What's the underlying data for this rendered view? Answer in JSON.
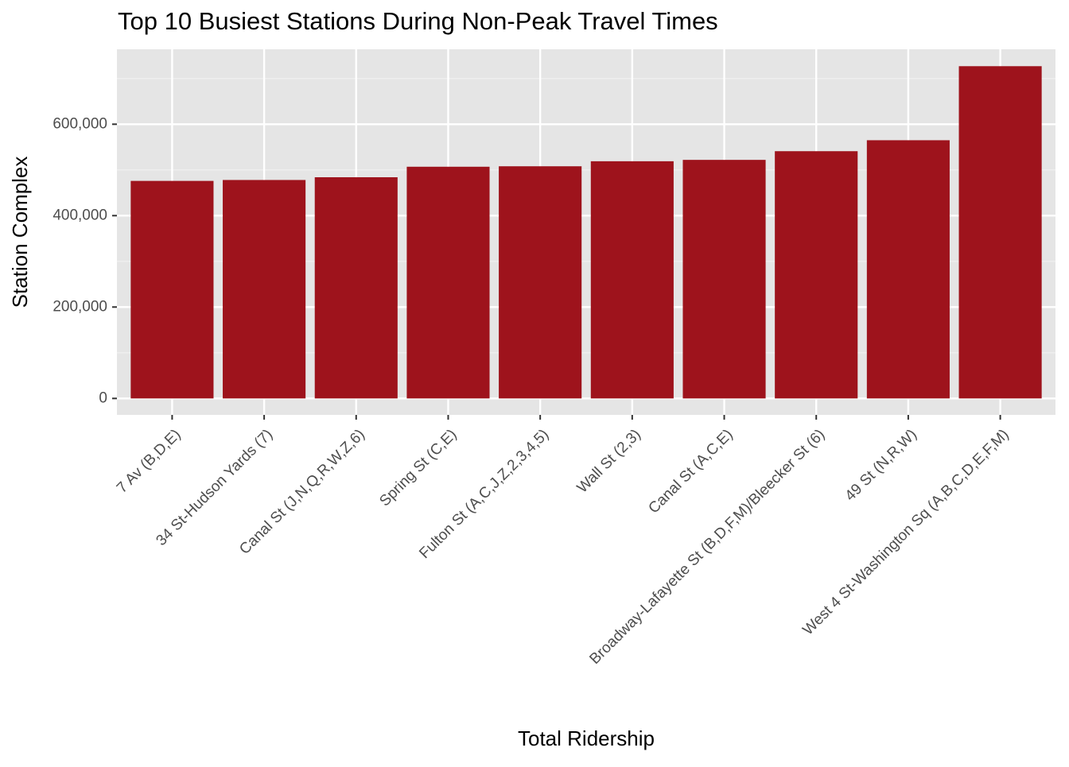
{
  "chart_data": {
    "type": "bar",
    "title": "Top 10 Busiest Stations During Non-Peak Travel Times",
    "x_label": "Total Ridership",
    "y_label": "Station Complex",
    "categories": [
      "7 Av (B,D,E)",
      "34 St-Hudson Yards (7)",
      "Canal St (J,N,Q,R,W,Z,6)",
      "Spring St (C,E)",
      "Fulton St (A,C,J,Z,2,3,4,5)",
      "Wall St (2,3)",
      "Canal St (A,C,E)",
      "Broadway-Lafayette St (B,D,F,M)/Bleecker St (6)",
      "49 St (N,R,W)",
      "West 4 St-Washington Sq (A,B,C,D,E,F,M)"
    ],
    "values": [
      476000,
      478000,
      484000,
      507000,
      508000,
      519000,
      522000,
      541000,
      565000,
      727000
    ],
    "color": "#9e131c",
    "ylim": [
      -36000,
      764000
    ],
    "yticks": [
      0,
      {
        "value": 200000,
        "label": "200,000"
      },
      {
        "value": 400000,
        "label": "400,000"
      },
      {
        "value": 600000,
        "label": "600,000"
      }
    ],
    "minor_yticks": [
      100000,
      300000,
      500000,
      700000
    ],
    "grid": true
  }
}
